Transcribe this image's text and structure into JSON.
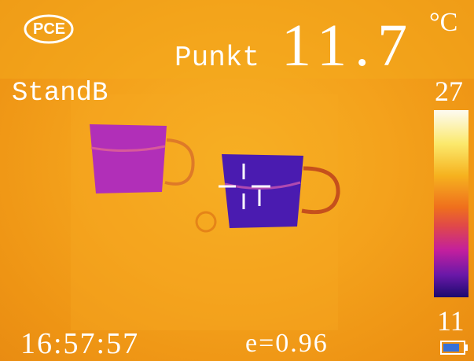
{
  "header": {
    "logo": "PCE",
    "mode": "Punkt",
    "reading": "11.7",
    "unit": "°C"
  },
  "palette": {
    "label": "StandB",
    "max": 27,
    "min": 11
  },
  "footer": {
    "time": "16:57:57",
    "emissivity": "e=0.96"
  }
}
